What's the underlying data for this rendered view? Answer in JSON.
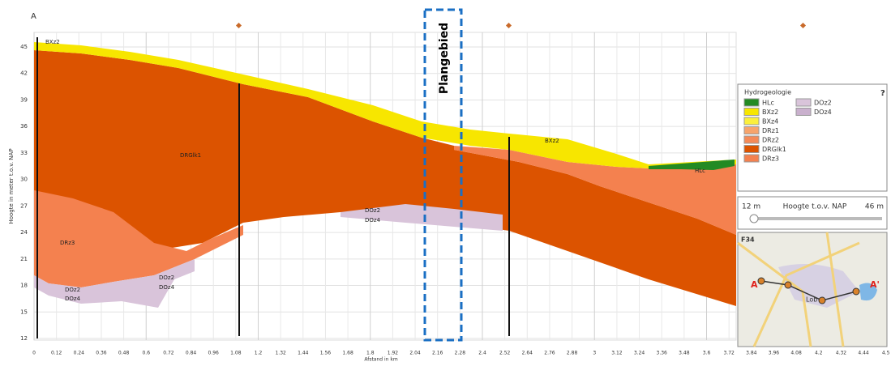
{
  "profile": {
    "start_label": "A",
    "y_axis": {
      "label": "Hoogte in meter t.o.v. NAP",
      "ticks": [
        "45",
        "42",
        "39",
        "36",
        "33",
        "30",
        "27",
        "24",
        "21",
        "18",
        "15",
        "12"
      ]
    },
    "x_axis": {
      "label": "Afstand in km",
      "ticks": [
        "0",
        "0.12",
        "0.24",
        "0.36",
        "0.48",
        "0.6",
        "0.72",
        "0.84",
        "0.96",
        "1.08",
        "1.2",
        "1.32",
        "1.44",
        "1.56",
        "1.68",
        "1.8",
        "1.92",
        "2.04",
        "2.16",
        "2.28",
        "2.4",
        "2.52",
        "2.64",
        "2.76",
        "2.88",
        "3",
        "3.12",
        "3.24",
        "3.36",
        "3.48",
        "3.6",
        "3.72",
        "3.84",
        "3.96",
        "4.08",
        "4.2",
        "4.32",
        "4.44",
        "4.5"
      ]
    },
    "layer_labels": [
      "BXz2",
      "DRGlk1",
      "DRz3",
      "DOz2",
      "DOz4",
      "DOz2",
      "DOz4",
      "DOz2",
      "DOz4",
      "BXz2",
      "HLc"
    ],
    "annotation": "Plangebied"
  },
  "legend": {
    "title": "Hydrogeologie",
    "help": "?",
    "items": [
      "HLc",
      "BXz2",
      "BXz4",
      "DRz1",
      "DRz2",
      "DRGlk1",
      "DRz3",
      "DOz2",
      "DOz4"
    ]
  },
  "slider": {
    "min": "12 m",
    "label": "Hoogte t.o.v. NAP",
    "max": "46 m"
  },
  "map": {
    "tile": "F34",
    "start": "A",
    "end": "A'",
    "place": "Lob"
  }
}
